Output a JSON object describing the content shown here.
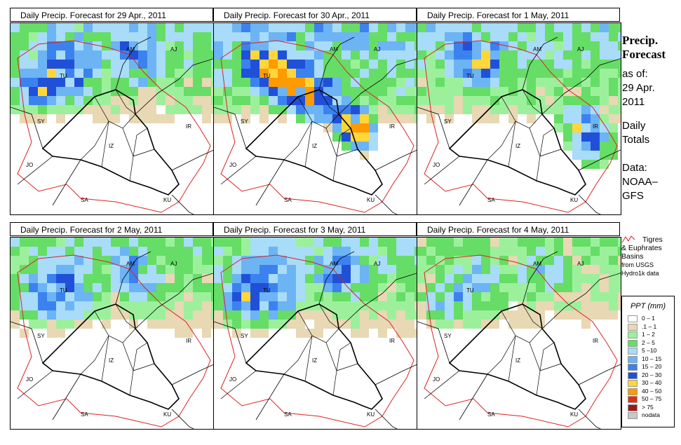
{
  "panels": [
    {
      "title": "Daily Precip. Forecast for  29 Apr., 2011",
      "intensity": 1.0,
      "storm": "north"
    },
    {
      "title": "Daily Precip. Forecast for  30 Apr., 2011",
      "intensity": 1.6,
      "storm": "zagros"
    },
    {
      "title": "Daily Precip. Forecast for  1 May, 2011",
      "intensity": 1.1,
      "storm": "southeast"
    },
    {
      "title": "Daily Precip. Forecast for  2 May, 2011",
      "intensity": 0.75,
      "storm": "north"
    },
    {
      "title": "Daily Precip. Forecast for  3 May, 2011",
      "intensity": 0.9,
      "storm": "north"
    },
    {
      "title": "Daily Precip. Forecast for  4 May, 2011",
      "intensity": 0.45,
      "storm": "north"
    }
  ],
  "country_labels": [
    "AM",
    "AJ",
    "TU",
    "SY",
    "IR",
    "IZ",
    "JO",
    "SA",
    "KU"
  ],
  "sidebar": {
    "title_line1": "Precip.",
    "title_line2": "Forecast",
    "asof_line1": "as of:",
    "asof_line2": "29 Apr.",
    "asof_line3": "2011",
    "daily_line1": "Daily",
    "daily_line2": "Totals",
    "data_line1": "Data:",
    "data_line2": "NOAA–",
    "data_line3": "GFS"
  },
  "basin_legend": {
    "line1": "Tigres",
    "line2": "& Euphrates",
    "line3": "Basins",
    "line4": "from USGS",
    "line5": "Hydro1k data",
    "color": "#dd2222"
  },
  "legend": {
    "title": "PPT (mm)",
    "bins": [
      {
        "label": "0 – 1",
        "color": "#ffffff"
      },
      {
        "label": ".1 – 1",
        "color": "#e8d8b4"
      },
      {
        "label": "1 – 2",
        "color": "#9cf09c"
      },
      {
        "label": "2 – 5",
        "color": "#66dd66"
      },
      {
        "label": "5 –10",
        "color": "#a8dcf8"
      },
      {
        "label": "10 – 15",
        "color": "#6cb4f4"
      },
      {
        "label": "15 – 20",
        "color": "#3c82ee"
      },
      {
        "label": "20 – 30",
        "color": "#2050d8"
      },
      {
        "label": "30 – 40",
        "color": "#ffd73a"
      },
      {
        "label": "40 – 50",
        "color": "#ff9a00"
      },
      {
        "label": "50 – 75",
        "color": "#e03010"
      },
      {
        "label": "> 75",
        "color": "#a01818"
      },
      {
        "label": "nodata",
        "color": "#c8c8c8"
      }
    ]
  }
}
